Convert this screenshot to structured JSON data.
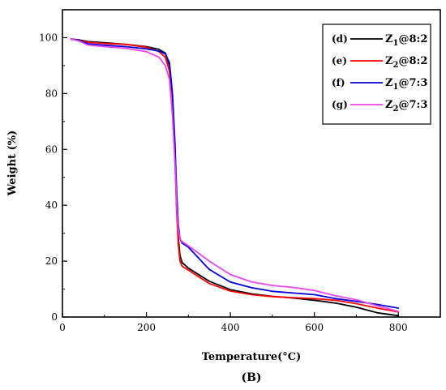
{
  "chart_data": {
    "type": "line",
    "xlabel": "Temperature(°C)",
    "ylabel": "Weight (%)",
    "panel_label": "(B)",
    "xlim": [
      0,
      900
    ],
    "ylim": [
      0,
      110
    ],
    "xticks": [
      0,
      200,
      400,
      600,
      800
    ],
    "yticks": [
      0,
      20,
      40,
      60,
      80,
      100
    ],
    "grid": false,
    "legend_position": "top-right",
    "series": [
      {
        "letter": "(d)",
        "name": "Z1@8:2",
        "name_base": "Z",
        "name_sub": "1",
        "name_rest": "@8:2",
        "color": "#000000",
        "x": [
          20,
          40,
          60,
          100,
          150,
          200,
          230,
          245,
          255,
          262,
          268,
          272,
          276,
          280,
          285,
          300,
          350,
          400,
          450,
          500,
          550,
          600,
          650,
          700,
          750,
          800
        ],
        "y": [
          99.5,
          99.2,
          98.6,
          98.2,
          97.6,
          96.8,
          95.8,
          94.5,
          90.0,
          78.0,
          58.0,
          40.0,
          28.0,
          22.0,
          19.5,
          17.5,
          12.8,
          9.8,
          8.3,
          7.4,
          6.8,
          6.0,
          5.0,
          3.5,
          1.5,
          0.5
        ]
      },
      {
        "letter": "(e)",
        "name": "Z2@8:2",
        "name_base": "Z",
        "name_sub": "2",
        "name_rest": "@8:2",
        "color": "#ff0000",
        "x": [
          20,
          40,
          60,
          100,
          150,
          200,
          230,
          245,
          255,
          262,
          268,
          272,
          276,
          280,
          285,
          300,
          350,
          400,
          450,
          500,
          550,
          600,
          650,
          700,
          750,
          800
        ],
        "y": [
          99.5,
          99.0,
          98.4,
          97.9,
          97.6,
          96.6,
          95.0,
          93.0,
          88.0,
          76.0,
          56.0,
          38.0,
          26.0,
          20.0,
          18.2,
          16.8,
          12.0,
          9.3,
          8.0,
          7.3,
          6.9,
          6.6,
          6.0,
          4.8,
          3.2,
          1.8
        ]
      },
      {
        "letter": "(f)",
        "name": "Z1@7:3",
        "name_base": "Z",
        "name_sub": "1",
        "name_rest": "@7:3",
        "color": "#0000dd",
        "x": [
          20,
          40,
          60,
          100,
          150,
          200,
          230,
          245,
          255,
          262,
          268,
          272,
          276,
          280,
          285,
          300,
          350,
          400,
          450,
          500,
          550,
          600,
          650,
          700,
          750,
          800
        ],
        "y": [
          99.5,
          99.0,
          97.8,
          97.3,
          96.8,
          96.0,
          95.2,
          94.2,
          91.0,
          80.0,
          62.0,
          45.0,
          33.0,
          28.0,
          26.5,
          25.0,
          17.0,
          12.5,
          10.5,
          9.2,
          8.6,
          8.0,
          6.6,
          5.6,
          4.5,
          3.2
        ]
      },
      {
        "letter": "(g)",
        "name": "Z2@7:3",
        "name_base": "Z",
        "name_sub": "2",
        "name_rest": "@7:3",
        "color": "#ee44ee",
        "x": [
          20,
          40,
          60,
          100,
          150,
          200,
          230,
          245,
          255,
          262,
          268,
          272,
          276,
          280,
          285,
          300,
          350,
          400,
          450,
          500,
          550,
          600,
          650,
          700,
          750,
          800
        ],
        "y": [
          99.5,
          98.8,
          97.4,
          96.8,
          96.2,
          95.0,
          93.0,
          90.0,
          85.0,
          72.0,
          55.0,
          40.0,
          31.0,
          28.0,
          27.0,
          25.5,
          20.0,
          15.2,
          12.6,
          11.3,
          10.6,
          9.5,
          7.6,
          6.2,
          4.0,
          2.0
        ]
      }
    ]
  }
}
